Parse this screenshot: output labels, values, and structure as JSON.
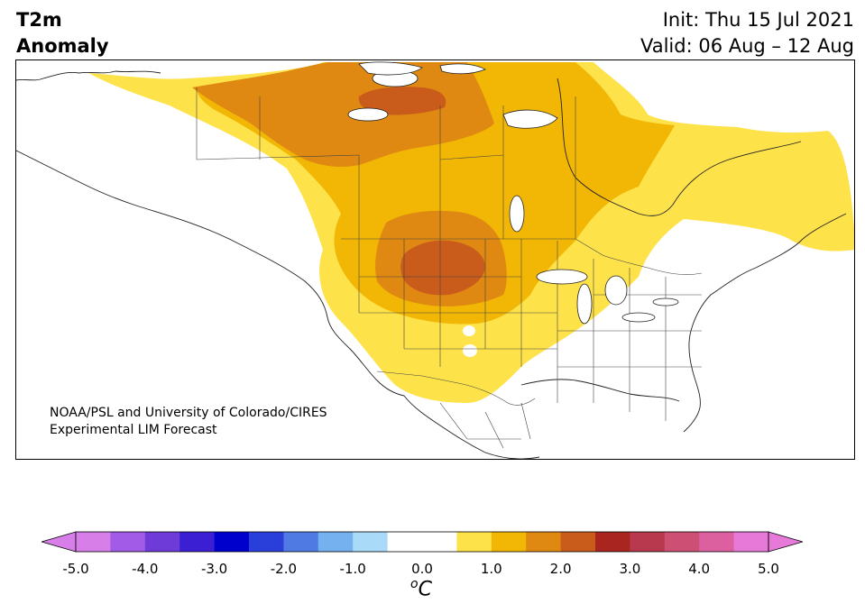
{
  "title": {
    "line1": "T2m",
    "line2": "Anomaly"
  },
  "run": {
    "init": "Init: Thu 15 Jul 2021",
    "valid": "Valid: 06 Aug – 12 Aug"
  },
  "credit": {
    "line1": "NOAA/PSL and University of Colorado/CIRES",
    "line2": "Experimental LIM Forecast"
  },
  "colorbar": {
    "ticks": [
      "-5.0",
      "-4.0",
      "-3.0",
      "-2.0",
      "-1.0",
      "0.0",
      "1.0",
      "2.0",
      "3.0",
      "4.0",
      "5.0"
    ],
    "unit_sup": "o",
    "unit": "C",
    "colors": [
      "#d77ee8",
      "#a25be6",
      "#6e3ad8",
      "#3b1fd3",
      "#0000cc",
      "#2a3fd9",
      "#4f7ae3",
      "#74b1ee",
      "#a9daf8",
      "#ffffff",
      "#ffffff",
      "#fee24a",
      "#f2b705",
      "#df8912",
      "#c95b1b",
      "#a8261f",
      "#b8394d",
      "#cd4f74",
      "#dc60a0",
      "#e77ad8"
    ],
    "extend_min_color": "#d77ee8",
    "extend_max_color": "#e77ad8"
  },
  "anomaly_colors": {
    "c05": "#fee24a",
    "c10": "#f2b705",
    "c15": "#df8912",
    "c20": "#c95b1b"
  }
}
